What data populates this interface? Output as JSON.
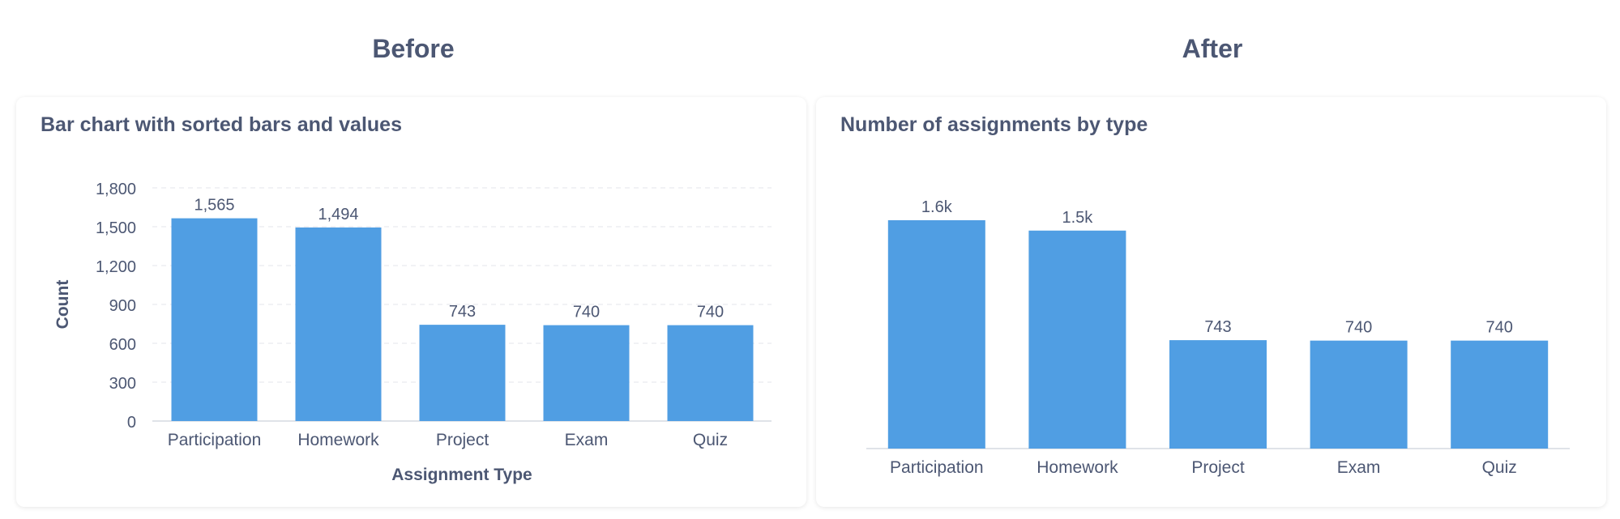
{
  "headers": {
    "before": "Before",
    "after": "After"
  },
  "colors": {
    "bar": "#509ee3",
    "text": "#4c5773",
    "grid": "#e3e6eb",
    "axis": "#dfe3e8"
  },
  "chart_data": [
    {
      "type": "bar",
      "title": "Bar chart with sorted bars and values",
      "categories": [
        "Participation",
        "Homework",
        "Project",
        "Exam",
        "Quiz"
      ],
      "values": [
        1565,
        1494,
        743,
        740,
        740
      ],
      "value_labels": [
        "1,565",
        "1,494",
        "743",
        "740",
        "740"
      ],
      "xlabel": "Assignment Type",
      "ylabel": "Count",
      "ylim": [
        0,
        1800
      ],
      "yticks": [
        "0",
        "300",
        "600",
        "900",
        "1,200",
        "1,500",
        "1,800"
      ],
      "grid": true
    },
    {
      "type": "bar",
      "title": "Number of assignments by type",
      "categories": [
        "Participation",
        "Homework",
        "Project",
        "Exam",
        "Quiz"
      ],
      "values": [
        1565,
        1494,
        743,
        740,
        740
      ],
      "value_labels": [
        "1.6k",
        "1.5k",
        "743",
        "740",
        "740"
      ],
      "xlabel": "",
      "ylabel": "",
      "grid": false
    }
  ]
}
